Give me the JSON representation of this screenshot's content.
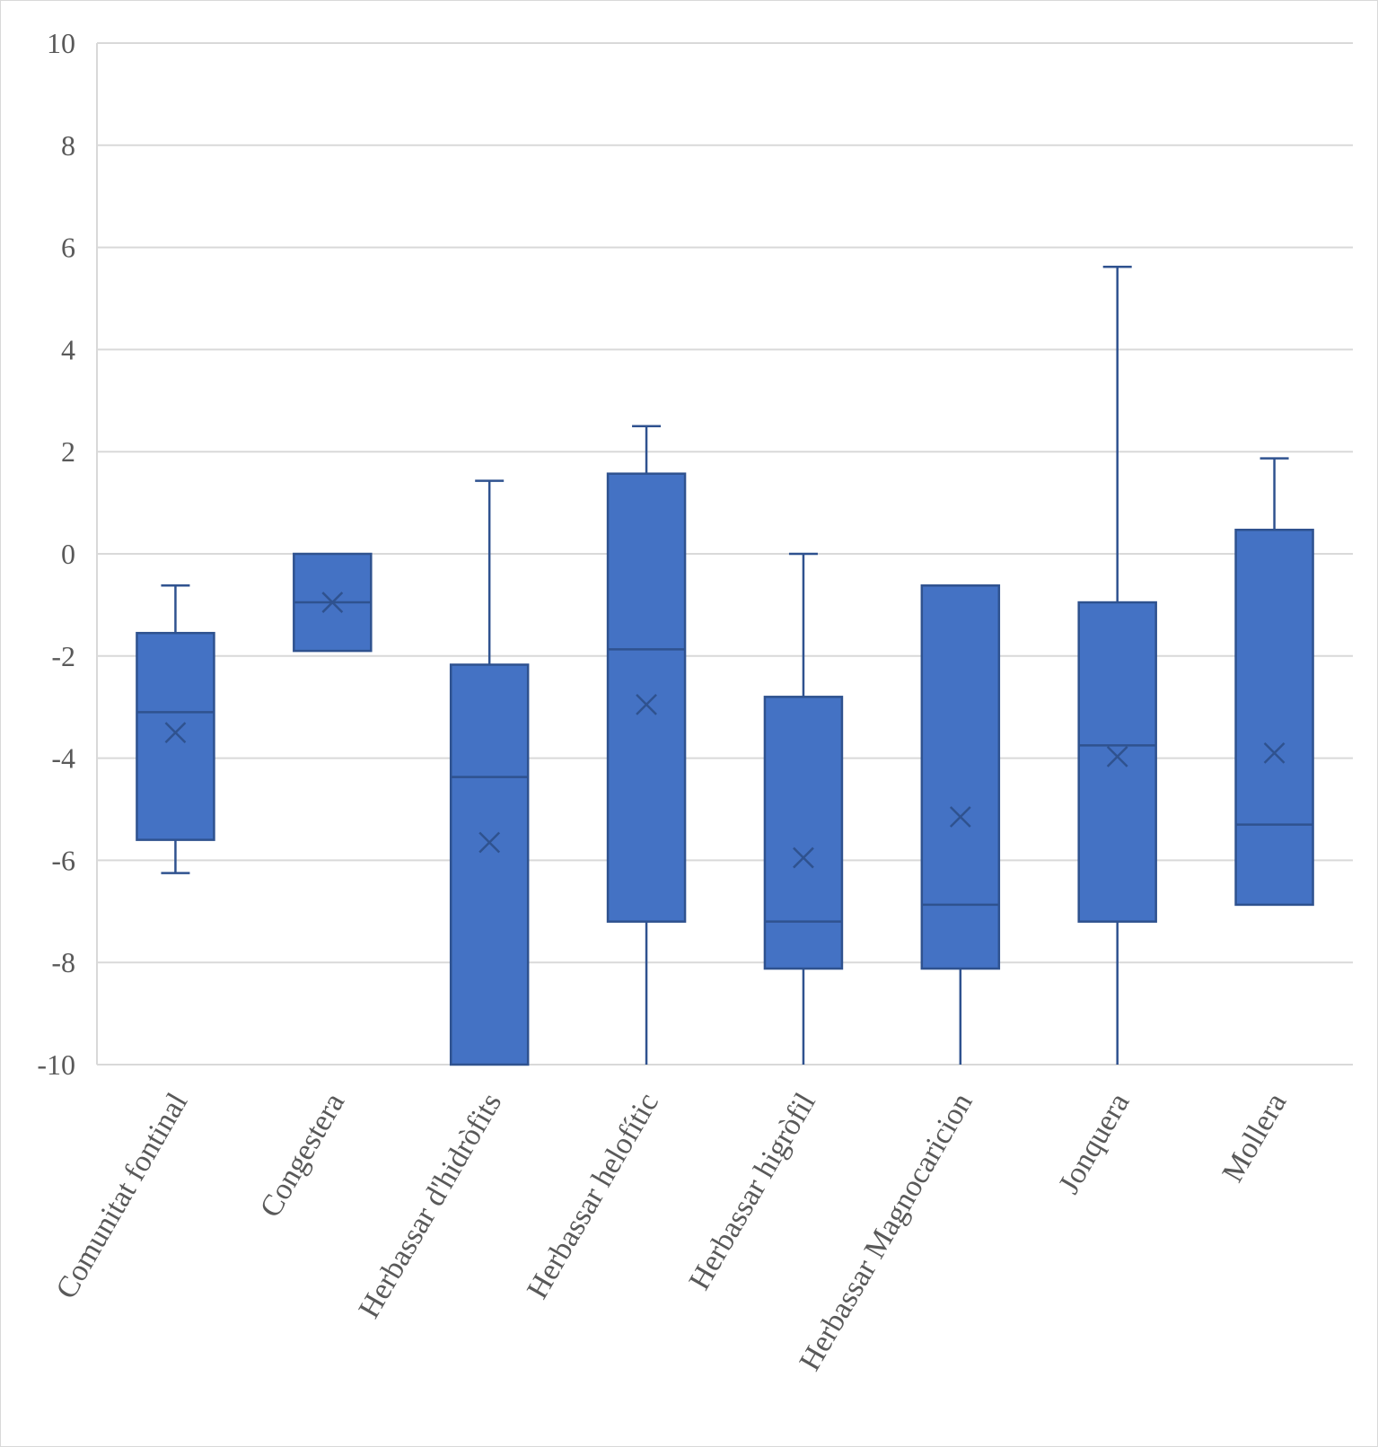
{
  "chart_data": {
    "type": "box",
    "title": "",
    "xlabel": "",
    "ylabel": "",
    "ylim": [
      -10,
      10
    ],
    "yticks": [
      10,
      8,
      6,
      4,
      2,
      0,
      -2,
      -4,
      -6,
      -8,
      -10
    ],
    "y_tick_labels": [
      "10",
      "8",
      "6",
      "4",
      "2",
      "0",
      "-2",
      "-4",
      "-6",
      "-8",
      "-10"
    ],
    "grid": true,
    "legend": "none",
    "box_color": "#4472c4",
    "box_edge_color": "#2f528f",
    "gridline_color": "#d9d9d9",
    "categories": [
      "Comunitat fontinal",
      "Congestera",
      "Herbassar d'hidròfits",
      "Herbassar helofític",
      "Herbassar higròfil",
      "Herbassar Magnocaricion",
      "Jonquera",
      "Mollera"
    ],
    "boxes": [
      {
        "whisker_low": -6.25,
        "q1": -5.6,
        "median": -3.1,
        "q3": -1.55,
        "whisker_high": -0.62,
        "mean": -3.5
      },
      {
        "whisker_low": -1.9,
        "q1": -1.9,
        "median": -0.95,
        "q3": 0,
        "whisker_high": 0,
        "mean": -0.95
      },
      {
        "whisker_low": -10,
        "q1": -10,
        "median": -4.37,
        "q3": -2.17,
        "whisker_high": 1.43,
        "mean": -5.65
      },
      {
        "whisker_low": -10,
        "q1": -7.2,
        "median": -1.87,
        "q3": 1.57,
        "whisker_high": 2.5,
        "mean": -2.95
      },
      {
        "whisker_low": -10,
        "q1": -8.12,
        "median": -7.2,
        "q3": -2.8,
        "whisker_high": 0,
        "mean": -5.95
      },
      {
        "whisker_low": -10,
        "q1": -8.12,
        "median": -6.87,
        "q3": -0.62,
        "whisker_high": -0.62,
        "mean": -5.15
      },
      {
        "whisker_low": -10,
        "q1": -7.2,
        "median": -3.75,
        "q3": -0.95,
        "whisker_high": 5.62,
        "mean": -3.97
      },
      {
        "whisker_low": -6.87,
        "q1": -6.87,
        "median": -5.3,
        "q3": 0.47,
        "whisker_high": 1.87,
        "mean": -3.9
      }
    ]
  }
}
